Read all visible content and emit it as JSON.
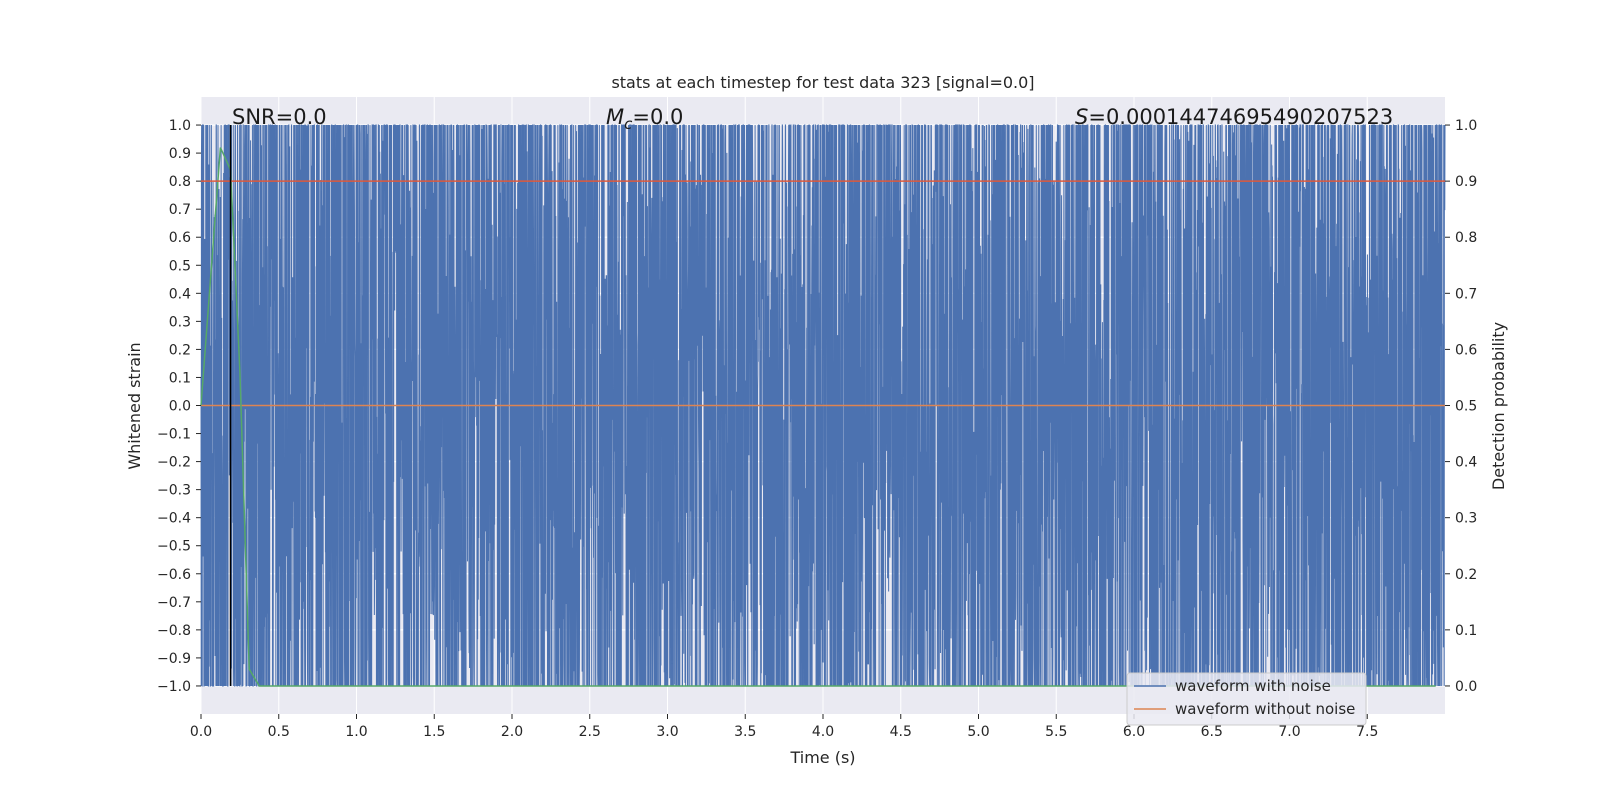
{
  "chart_data": {
    "type": "line",
    "title": "stats at each timestep for test data 323 [signal=0.0]",
    "xlabel": "Time (s)",
    "ylabel": "Whitened strain",
    "y2label": "Detection probability",
    "xlim": [
      0.0,
      8.0
    ],
    "ylim": [
      -1.1,
      1.1
    ],
    "y2lim": [
      -0.05,
      1.05
    ],
    "xticks": [
      0.0,
      0.5,
      1.0,
      1.5,
      2.0,
      2.5,
      3.0,
      3.5,
      4.0,
      4.5,
      5.0,
      5.5,
      6.0,
      6.5,
      7.0,
      7.5
    ],
    "xtick_labels": [
      "0.0",
      "0.5",
      "1.0",
      "1.5",
      "2.0",
      "2.5",
      "3.0",
      "3.5",
      "4.0",
      "4.5",
      "5.0",
      "5.5",
      "6.0",
      "6.5",
      "7.0",
      "7.5"
    ],
    "yticks": [
      -1.0,
      -0.9,
      -0.8,
      -0.7,
      -0.6,
      -0.5,
      -0.4,
      -0.3,
      -0.2,
      -0.1,
      0.0,
      0.1,
      0.2,
      0.3,
      0.4,
      0.5,
      0.6,
      0.7,
      0.8,
      0.9,
      1.0
    ],
    "ytick_labels": [
      "−1.0",
      "−0.9",
      "−0.8",
      "−0.7",
      "−0.6",
      "−0.5",
      "−0.4",
      "−0.3",
      "−0.2",
      "−0.1",
      "0.0",
      "0.1",
      "0.2",
      "0.3",
      "0.4",
      "0.5",
      "0.6",
      "0.7",
      "0.8",
      "0.9",
      "1.0"
    ],
    "y2ticks": [
      0.0,
      0.1,
      0.2,
      0.3,
      0.4,
      0.5,
      0.6,
      0.7,
      0.8,
      0.9,
      1.0
    ],
    "y2tick_labels": [
      "0.0",
      "0.1",
      "0.2",
      "0.3",
      "0.4",
      "0.5",
      "0.6",
      "0.7",
      "0.8",
      "0.9",
      "1.0"
    ],
    "grid": true,
    "legend_placement": "lower-right",
    "annotations": {
      "snr": "SNR=0.0",
      "mc_symbol": "M",
      "mc_sub": "c",
      "mc_value": "=0.0",
      "s_symbol": "S",
      "s_value": "=0.00014474695490207523"
    },
    "series": [
      {
        "name": "waveform with noise",
        "color": "#4c72b0",
        "axis": "left",
        "kind": "whitened noise strain, clipped to [-1, 1]",
        "x_range": [
          0.0,
          8.0
        ]
      },
      {
        "name": "waveform without noise",
        "color": "#dd8452",
        "axis": "left",
        "x": [
          0.0,
          8.0
        ],
        "y": [
          0.0,
          0.0
        ]
      },
      {
        "name": "",
        "color": "#55a868",
        "axis": "right",
        "x": [
          0.0,
          0.125,
          0.19,
          0.25,
          0.31,
          0.375,
          0.5,
          1.0,
          2.0,
          4.0,
          6.0,
          7.5,
          7.94
        ],
        "y": [
          0.5,
          0.96,
          0.92,
          0.56,
          0.03,
          0.0,
          0.0,
          0.0,
          0.0,
          0.0,
          0.0,
          0.0,
          0.0
        ]
      },
      {
        "name": "",
        "color": "#dd5a3c",
        "axis": "right",
        "x": [
          0.0,
          8.0
        ],
        "y": [
          0.9,
          0.9
        ]
      }
    ],
    "vertical_marker": {
      "x": 0.19,
      "color": "#000000"
    }
  }
}
